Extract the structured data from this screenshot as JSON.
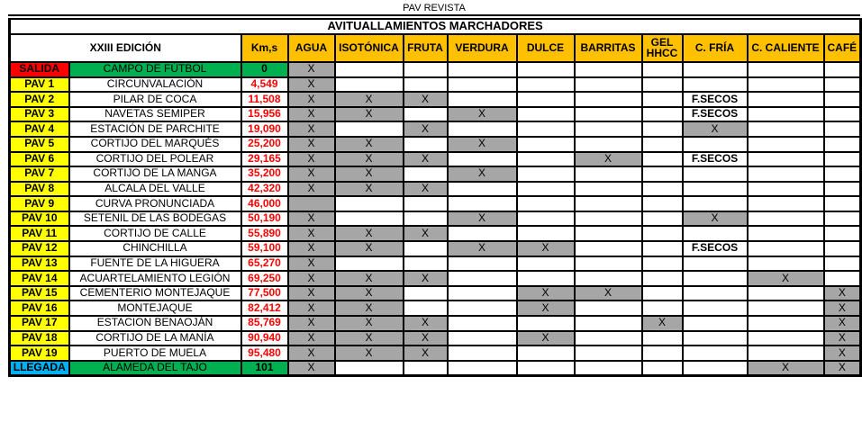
{
  "page_title": "PAV REVISTA",
  "colors": {
    "header_bg": "#FFC000",
    "start_label_bg": "#FF0000",
    "pav_label_bg": "#FFFF00",
    "finish_label_bg": "#00B0F0",
    "endpoint_bg": "#00B050",
    "marked_cell_bg": "#A6A6A6",
    "km_text": "#FF0000",
    "border": "#000000"
  },
  "table": {
    "main_header": "AVITUALLAMIENTOS MARCHADORES",
    "edition_header": "XXIII EDICIÓN",
    "km_header": "Km,s",
    "supply_columns": [
      {
        "id": "agua",
        "label": "AGUA",
        "always_shaded": true
      },
      {
        "id": "isotonica",
        "label": "ISOTÓNICA"
      },
      {
        "id": "fruta",
        "label": "FRUTA"
      },
      {
        "id": "verdura",
        "label": "VERDURA"
      },
      {
        "id": "dulce",
        "label": "DULCE"
      },
      {
        "id": "barritas",
        "label": "BARRITAS"
      },
      {
        "id": "gel-hhcc",
        "label": "GEL HHCC",
        "wrap": true
      },
      {
        "id": "c-fria",
        "label": "C. FRÍA"
      },
      {
        "id": "c-caliente",
        "label": "C. CALIENTE"
      },
      {
        "id": "cafe",
        "label": "CAFÉ"
      }
    ],
    "rows": [
      {
        "label": "SALIDA",
        "type": "start",
        "name": "CAMPO DE FÚTBOL",
        "km": "0",
        "cells": [
          "X",
          "",
          "",
          "",
          "",
          "",
          "",
          "",
          "",
          ""
        ]
      },
      {
        "label": "PAV 1",
        "type": "pav",
        "name": "CIRCUNVALACIÓN",
        "km": "4,549",
        "cells": [
          "X",
          "",
          "",
          "",
          "",
          "",
          "",
          "",
          "",
          ""
        ]
      },
      {
        "label": "PAV 2",
        "type": "pav",
        "name": "PILAR DE COCA",
        "km": "11,508",
        "cells": [
          "X",
          "X",
          "X",
          "",
          "",
          "",
          "",
          "F.SECOS",
          "",
          ""
        ]
      },
      {
        "label": "PAV 3",
        "type": "pav",
        "name": "NAVETAS SEMIPER",
        "km": "15,956",
        "cells": [
          "X",
          "X",
          "",
          "X",
          "",
          "",
          "",
          "F.SECOS",
          "",
          ""
        ]
      },
      {
        "label": "PAV 4",
        "type": "pav",
        "name": "ESTACIÓN DE PARCHITE",
        "km": "19,090",
        "cells": [
          "X",
          "",
          "X",
          "",
          "",
          "",
          "",
          "X",
          "",
          ""
        ]
      },
      {
        "label": "PAV 5",
        "type": "pav",
        "name": "CORTIJO  DEL MARQUÉS",
        "km": "25,200",
        "cells": [
          "X",
          "X",
          "",
          "X",
          "",
          "",
          "",
          "",
          "",
          ""
        ]
      },
      {
        "label": "PAV 6",
        "type": "pav",
        "name": "CORTIJO DEL POLEAR",
        "km": "29,165",
        "cells": [
          "X",
          "X",
          "X",
          "",
          "",
          "X",
          "",
          "F.SECOS",
          "",
          ""
        ]
      },
      {
        "label": "PAV 7",
        "type": "pav",
        "name": "CORTIJO DE LA MANGA",
        "km": "35,200",
        "cells": [
          "X",
          "X",
          "",
          "X",
          "",
          "",
          "",
          "",
          "",
          ""
        ]
      },
      {
        "label": "PAV 8",
        "type": "pav",
        "name": "ALCALA DEL VALLE",
        "km": "42,320",
        "cells": [
          "X",
          "X",
          "X",
          "",
          "",
          "",
          "",
          "",
          "",
          ""
        ]
      },
      {
        "label": "PAV 9",
        "type": "pav",
        "name": "CURVA PRONUNCIADA",
        "km": "46,000",
        "cells": [
          "",
          "",
          "",
          "",
          "",
          "",
          "",
          "",
          "",
          ""
        ]
      },
      {
        "label": "PAV 10",
        "type": "pav",
        "name": "SETENIL DE LAS BODEGAS",
        "km": "50,190",
        "cells": [
          "X",
          "",
          "",
          "X",
          "",
          "",
          "",
          "X",
          "",
          ""
        ]
      },
      {
        "label": "PAV 11",
        "type": "pav",
        "name": "CORTIJO DE CALLE",
        "km": "55,890",
        "cells": [
          "X",
          "X",
          "X",
          "",
          "",
          "",
          "",
          "",
          "",
          ""
        ]
      },
      {
        "label": "PAV 12",
        "type": "pav",
        "name": "CHINCHILLA",
        "km": "59,100",
        "cells": [
          "X",
          "X",
          "",
          "X",
          "X",
          "",
          "",
          "F.SECOS",
          "",
          ""
        ]
      },
      {
        "label": "PAV 13",
        "type": "pav",
        "name": "FUENTE DE LA HIGUERA",
        "km": "65,270",
        "cells": [
          "X",
          "",
          "",
          "",
          "",
          "",
          "",
          "",
          "",
          ""
        ]
      },
      {
        "label": "PAV 14",
        "type": "pav",
        "name": "ACUARTELAMIENTO LEGIÓN",
        "km": "69,250",
        "cells": [
          "X",
          "X",
          "X",
          "",
          "",
          "",
          "",
          "",
          "X",
          ""
        ]
      },
      {
        "label": "PAV 15",
        "type": "pav",
        "name": "CEMENTERIO MONTEJAQUE",
        "km": "77,500",
        "cells": [
          "X",
          "X",
          "",
          "",
          "X",
          "X",
          "",
          "",
          "",
          "X"
        ]
      },
      {
        "label": "PAV 16",
        "type": "pav",
        "name": "MONTEJAQUE",
        "km": "82,412",
        "cells": [
          "X",
          "X",
          "",
          "",
          "X",
          "",
          "",
          "",
          "",
          "X"
        ]
      },
      {
        "label": "PAV 17",
        "type": "pav",
        "name": "ESTACION BENAOJÁN",
        "km": "85,769",
        "cells": [
          "X",
          "X",
          "X",
          "",
          "",
          "",
          "X",
          "",
          "",
          "X"
        ]
      },
      {
        "label": "PAV 18",
        "type": "pav",
        "name": "CORTIJO DE LA MANÍA",
        "km": "90,940",
        "cells": [
          "X",
          "X",
          "X",
          "",
          "X",
          "",
          "",
          "",
          "",
          "X"
        ]
      },
      {
        "label": "PAV 19",
        "type": "pav",
        "name": "PUERTO DE MUELA",
        "km": "95,480",
        "cells": [
          "X",
          "X",
          "X",
          "",
          "",
          "",
          "",
          "",
          "",
          "X"
        ]
      },
      {
        "label": "LLEGADA",
        "type": "finish",
        "name": "ALAMEDA DEL TAJO",
        "km": "101",
        "cells": [
          "X",
          "",
          "",
          "",
          "",
          "",
          "",
          "",
          "X",
          "X"
        ]
      }
    ]
  }
}
